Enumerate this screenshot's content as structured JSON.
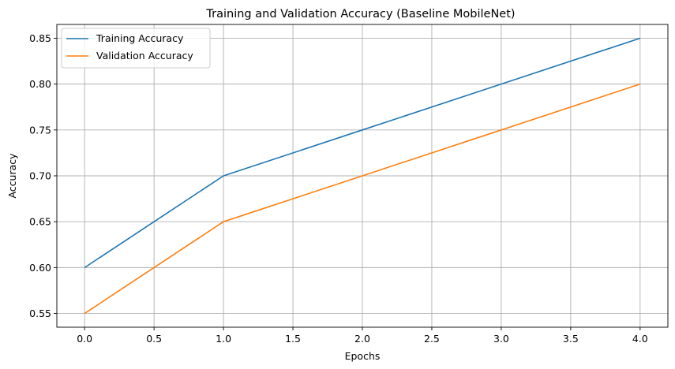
{
  "chart_data": {
    "type": "line",
    "title": "Training and Validation Accuracy (Baseline MobileNet)",
    "xlabel": "Epochs",
    "ylabel": "Accuracy",
    "xlim": [
      -0.2,
      4.2
    ],
    "ylim": [
      0.535,
      0.865
    ],
    "x_ticks": [
      0.0,
      0.5,
      1.0,
      1.5,
      2.0,
      2.5,
      3.0,
      3.5,
      4.0
    ],
    "x_tick_labels": [
      "0.0",
      "0.5",
      "1.0",
      "1.5",
      "2.0",
      "2.5",
      "3.0",
      "3.5",
      "4.0"
    ],
    "y_ticks": [
      0.55,
      0.6,
      0.65,
      0.7,
      0.75,
      0.8,
      0.85
    ],
    "y_tick_labels": [
      "0.55",
      "0.60",
      "0.65",
      "0.70",
      "0.75",
      "0.80",
      "0.85"
    ],
    "grid": true,
    "legend_position": "top-left",
    "x": [
      0,
      1,
      2,
      3,
      4
    ],
    "series": [
      {
        "name": "Training Accuracy",
        "color": "#1f77b4",
        "values": [
          0.6,
          0.7,
          0.75,
          0.8,
          0.85
        ]
      },
      {
        "name": "Validation Accuracy",
        "color": "#ff7f0e",
        "values": [
          0.55,
          0.65,
          0.7,
          0.75,
          0.8
        ]
      }
    ]
  }
}
